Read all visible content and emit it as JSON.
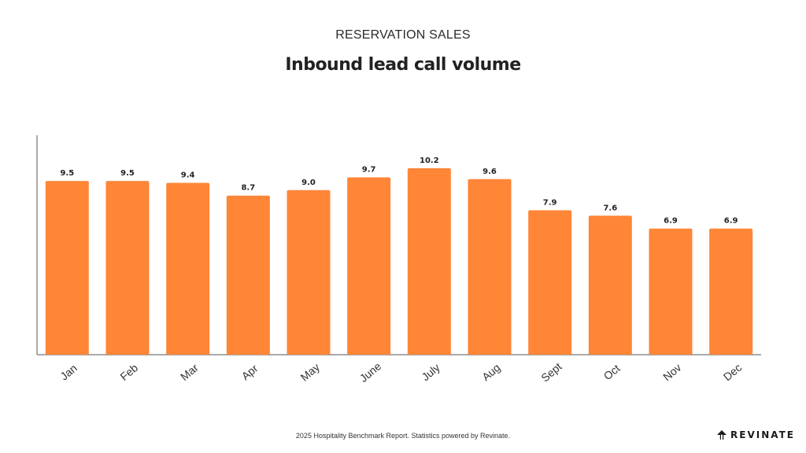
{
  "header": {
    "section_label": "RESERVATION SALES",
    "title": "Inbound lead call volume"
  },
  "footer": {
    "note": "2025 Hospitality Benchmark Report. Statistics powered by Revinate.",
    "brand": "REVINATE",
    "brand_icon": "revinate-logo-icon"
  },
  "colors": {
    "bar": "#FF8537",
    "axis": "#555555",
    "text": "#222222"
  },
  "chart_data": {
    "type": "bar",
    "title": "Inbound lead call volume",
    "categories": [
      "Jan",
      "Feb",
      "Mar",
      "Apr",
      "May",
      "June",
      "July",
      "Aug",
      "Sept",
      "Oct",
      "Nov",
      "Dec"
    ],
    "values": [
      9.5,
      9.5,
      9.4,
      8.7,
      9.0,
      9.7,
      10.2,
      9.6,
      7.9,
      7.6,
      6.9,
      6.9
    ],
    "value_labels": [
      "9.5",
      "9.5",
      "9.4",
      "8.7",
      "9.0",
      "9.7",
      "10.2",
      "9.6",
      "7.9",
      "7.6",
      "6.9",
      "6.9"
    ],
    "xlabel": "",
    "ylabel": "",
    "ylim": [
      0,
      12
    ],
    "grid": false,
    "legend": "none",
    "y_tick_labels_shown": false
  }
}
